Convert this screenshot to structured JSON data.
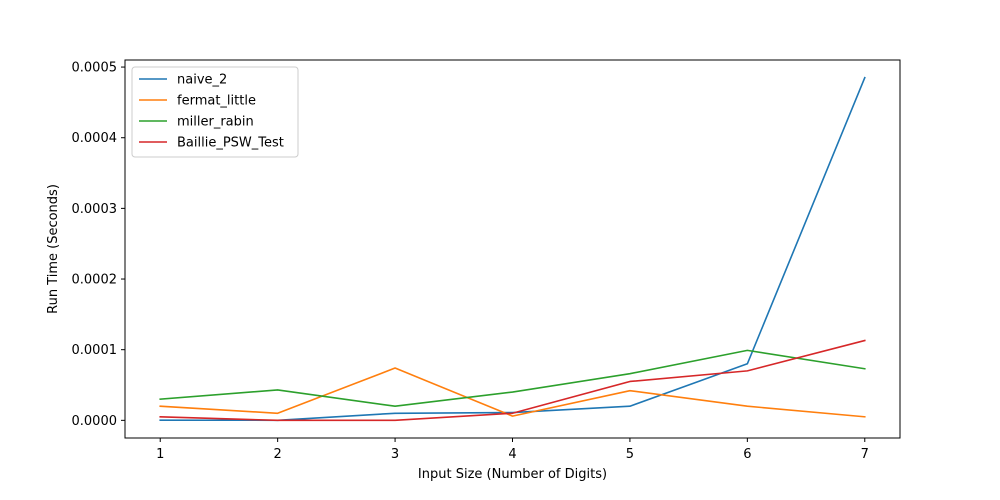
{
  "chart_data": {
    "type": "line",
    "title": "",
    "xlabel": "Input Size (Number of Digits)",
    "ylabel": "Run Time (Seconds)",
    "x": [
      1,
      2,
      3,
      4,
      5,
      6,
      7
    ],
    "xlim": [
      0.7,
      7.3
    ],
    "ylim": [
      -2.5e-05,
      0.00051
    ],
    "xticks": [
      1,
      2,
      3,
      4,
      5,
      6,
      7
    ],
    "xtick_labels": [
      "1",
      "2",
      "3",
      "4",
      "5",
      "6",
      "7"
    ],
    "yticks": [
      0,
      0.0001,
      0.0002,
      0.0003,
      0.0004,
      0.0005
    ],
    "ytick_labels": [
      "0.0000",
      "0.0001",
      "0.0002",
      "0.0003",
      "0.0004",
      "0.0005"
    ],
    "grid": false,
    "legend_position": "top-left",
    "series": [
      {
        "name": "naive_2",
        "color": "#1f77b4",
        "values": [
          2e-07,
          1e-07,
          1e-05,
          1.1e-05,
          2e-05,
          8e-05,
          0.000485
        ]
      },
      {
        "name": "fermat_little",
        "color": "#ff7f0e",
        "values": [
          2e-05,
          1e-05,
          7.4e-05,
          6e-06,
          4.2e-05,
          2e-05,
          5e-06
        ]
      },
      {
        "name": "miller_rabin",
        "color": "#2ca02c",
        "values": [
          3e-05,
          4.3e-05,
          2e-05,
          4e-05,
          6.6e-05,
          9.9e-05,
          7.3e-05
        ]
      },
      {
        "name": "Baillie_PSW_Test",
        "color": "#d62728",
        "values": [
          5e-06,
          0.0,
          0.0,
          1e-05,
          5.5e-05,
          7e-05,
          0.000113
        ]
      }
    ]
  }
}
